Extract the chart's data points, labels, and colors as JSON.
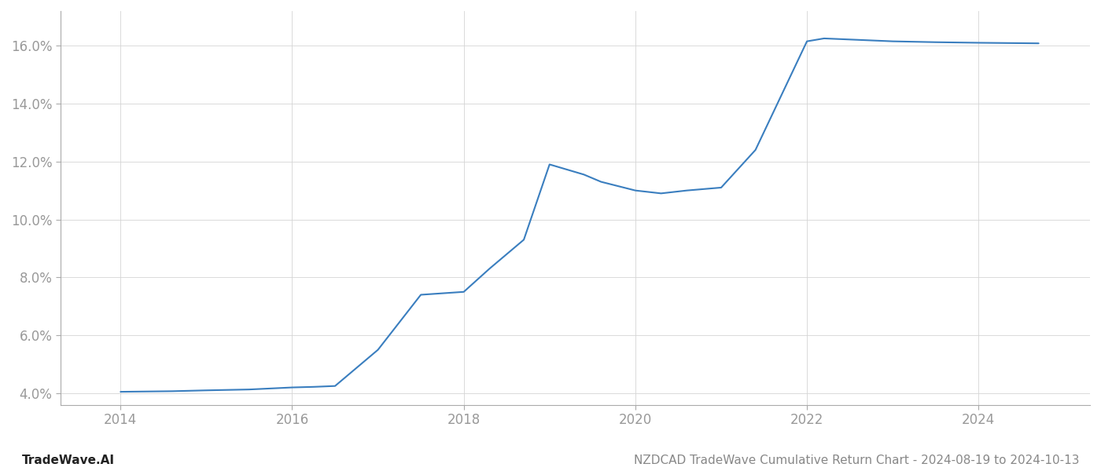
{
  "x_years": [
    2014.0,
    2014.6,
    2015.0,
    2015.5,
    2016.0,
    2016.25,
    2016.5,
    2017.0,
    2017.5,
    2018.0,
    2018.3,
    2018.7,
    2019.0,
    2019.4,
    2019.6,
    2020.0,
    2020.3,
    2020.6,
    2021.0,
    2021.4,
    2022.0,
    2022.2,
    2022.6,
    2023.0,
    2023.5,
    2024.0,
    2024.7
  ],
  "y_values": [
    4.05,
    4.07,
    4.1,
    4.13,
    4.2,
    4.22,
    4.25,
    5.5,
    7.4,
    7.5,
    8.3,
    9.3,
    11.9,
    11.55,
    11.3,
    11.0,
    10.9,
    11.0,
    11.1,
    12.4,
    16.15,
    16.25,
    16.2,
    16.15,
    16.12,
    16.1,
    16.08
  ],
  "line_color": "#3a7ebf",
  "line_width": 1.5,
  "background_color": "#ffffff",
  "grid_color": "#d5d5d5",
  "title": "NZDCAD TradeWave Cumulative Return Chart - 2024-08-19 to 2024-10-13",
  "footer_left": "TradeWave.AI",
  "ylabel_ticks": [
    4.0,
    6.0,
    8.0,
    10.0,
    12.0,
    14.0,
    16.0
  ],
  "xtick_labels": [
    "2014",
    "2016",
    "2018",
    "2020",
    "2022",
    "2024"
  ],
  "xtick_positions": [
    2014,
    2016,
    2018,
    2020,
    2022,
    2024
  ],
  "ylim": [
    3.6,
    17.2
  ],
  "xlim": [
    2013.3,
    2025.3
  ],
  "tick_color": "#999999",
  "spine_color": "#333333",
  "footer_left_color": "#222222",
  "footer_right_color": "#888888",
  "tick_fontsize": 12,
  "footer_fontsize": 11
}
